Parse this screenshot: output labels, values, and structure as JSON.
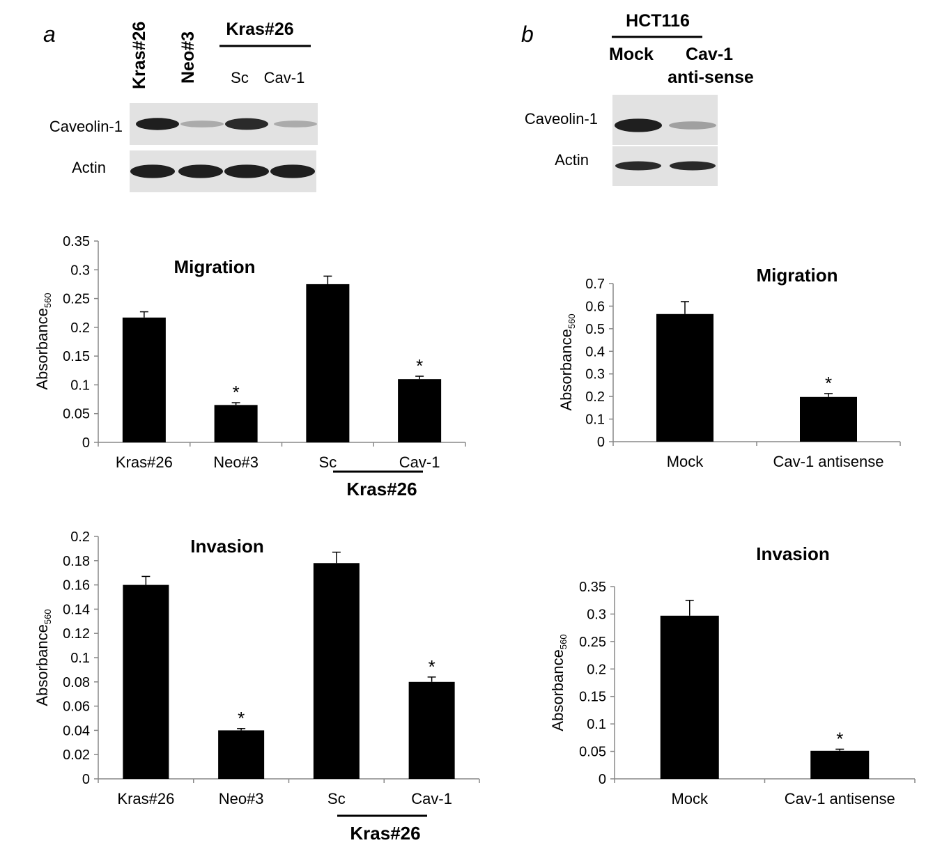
{
  "panel_a": {
    "letter": "a",
    "blot": {
      "lane_labels": [
        "Kras#26",
        "Neo#3",
        "Sc",
        "Cav-1"
      ],
      "group_label": "Kras#26",
      "row_labels": [
        "Caveolin-1",
        "Actin"
      ],
      "caveolin_band_levels": [
        0.95,
        0.3,
        0.9,
        0.3
      ],
      "actin_band_levels": [
        0.95,
        0.95,
        0.95,
        0.95
      ]
    }
  },
  "panel_b": {
    "letter": "b",
    "blot": {
      "group_label": "HCT116",
      "lane_labels": [
        "Mock",
        "Cav-1",
        "anti-sense"
      ],
      "row_labels": [
        "Caveolin-1",
        "Actin"
      ],
      "caveolin_band_levels": [
        0.95,
        0.35
      ],
      "actin_band_levels": [
        0.9,
        0.9
      ]
    }
  },
  "chart_data": [
    {
      "type": "bar",
      "title": "Migration",
      "ylabel_main": "Absorbance",
      "ylabel_sub": "560",
      "categories": [
        "Kras#26",
        "Neo#3",
        "Sc",
        "Cav-1"
      ],
      "group_label": "Kras#26",
      "values": [
        0.217,
        0.065,
        0.275,
        0.11
      ],
      "errors": [
        0.01,
        0.004,
        0.014,
        0.005
      ],
      "significant": [
        "",
        "*",
        "",
        "*"
      ],
      "ylim": [
        0,
        0.35
      ],
      "ticks": [
        "0",
        "0.05",
        "0.1",
        "0.15",
        "0.2",
        "0.25",
        "0.3",
        "0.35"
      ],
      "color": "#000000"
    },
    {
      "type": "bar",
      "title": "Invasion",
      "ylabel_main": "Absorbance",
      "ylabel_sub": "560",
      "categories": [
        "Kras#26",
        "Neo#3",
        "Sc",
        "Cav-1"
      ],
      "group_label": "Kras#26",
      "values": [
        0.16,
        0.04,
        0.178,
        0.08
      ],
      "errors": [
        0.007,
        0.0015,
        0.009,
        0.004
      ],
      "significant": [
        "",
        "*",
        "",
        "*"
      ],
      "ylim": [
        0,
        0.2
      ],
      "ticks": [
        "0",
        "0.02",
        "0.04",
        "0.06",
        "0.08",
        "0.1",
        "0.12",
        "0.14",
        "0.16",
        "0.18",
        "0.2"
      ],
      "color": "#000000"
    },
    {
      "type": "bar",
      "title": "Migration",
      "ylabel_main": "Absorbance",
      "ylabel_sub": "560",
      "categories": [
        "Mock",
        "Cav-1 antisense"
      ],
      "values": [
        0.565,
        0.198
      ],
      "errors": [
        0.055,
        0.015
      ],
      "significant": [
        "",
        "*"
      ],
      "ylim": [
        0,
        0.7
      ],
      "ticks": [
        "0",
        "0.1",
        "0.2",
        "0.3",
        "0.4",
        "0.5",
        "0.6",
        "0.7"
      ],
      "color": "#000000"
    },
    {
      "type": "bar",
      "title": "Invasion",
      "ylabel_main": "Absorbance",
      "ylabel_sub": "560",
      "categories": [
        "Mock",
        "Cav-1 antisense"
      ],
      "values": [
        0.297,
        0.051
      ],
      "errors": [
        0.028,
        0.003
      ],
      "significant": [
        "",
        "*"
      ],
      "ylim": [
        0,
        0.35
      ],
      "ticks": [
        "0",
        "0.05",
        "0.1",
        "0.15",
        "0.2",
        "0.25",
        "0.3",
        "0.35"
      ],
      "color": "#000000"
    }
  ]
}
